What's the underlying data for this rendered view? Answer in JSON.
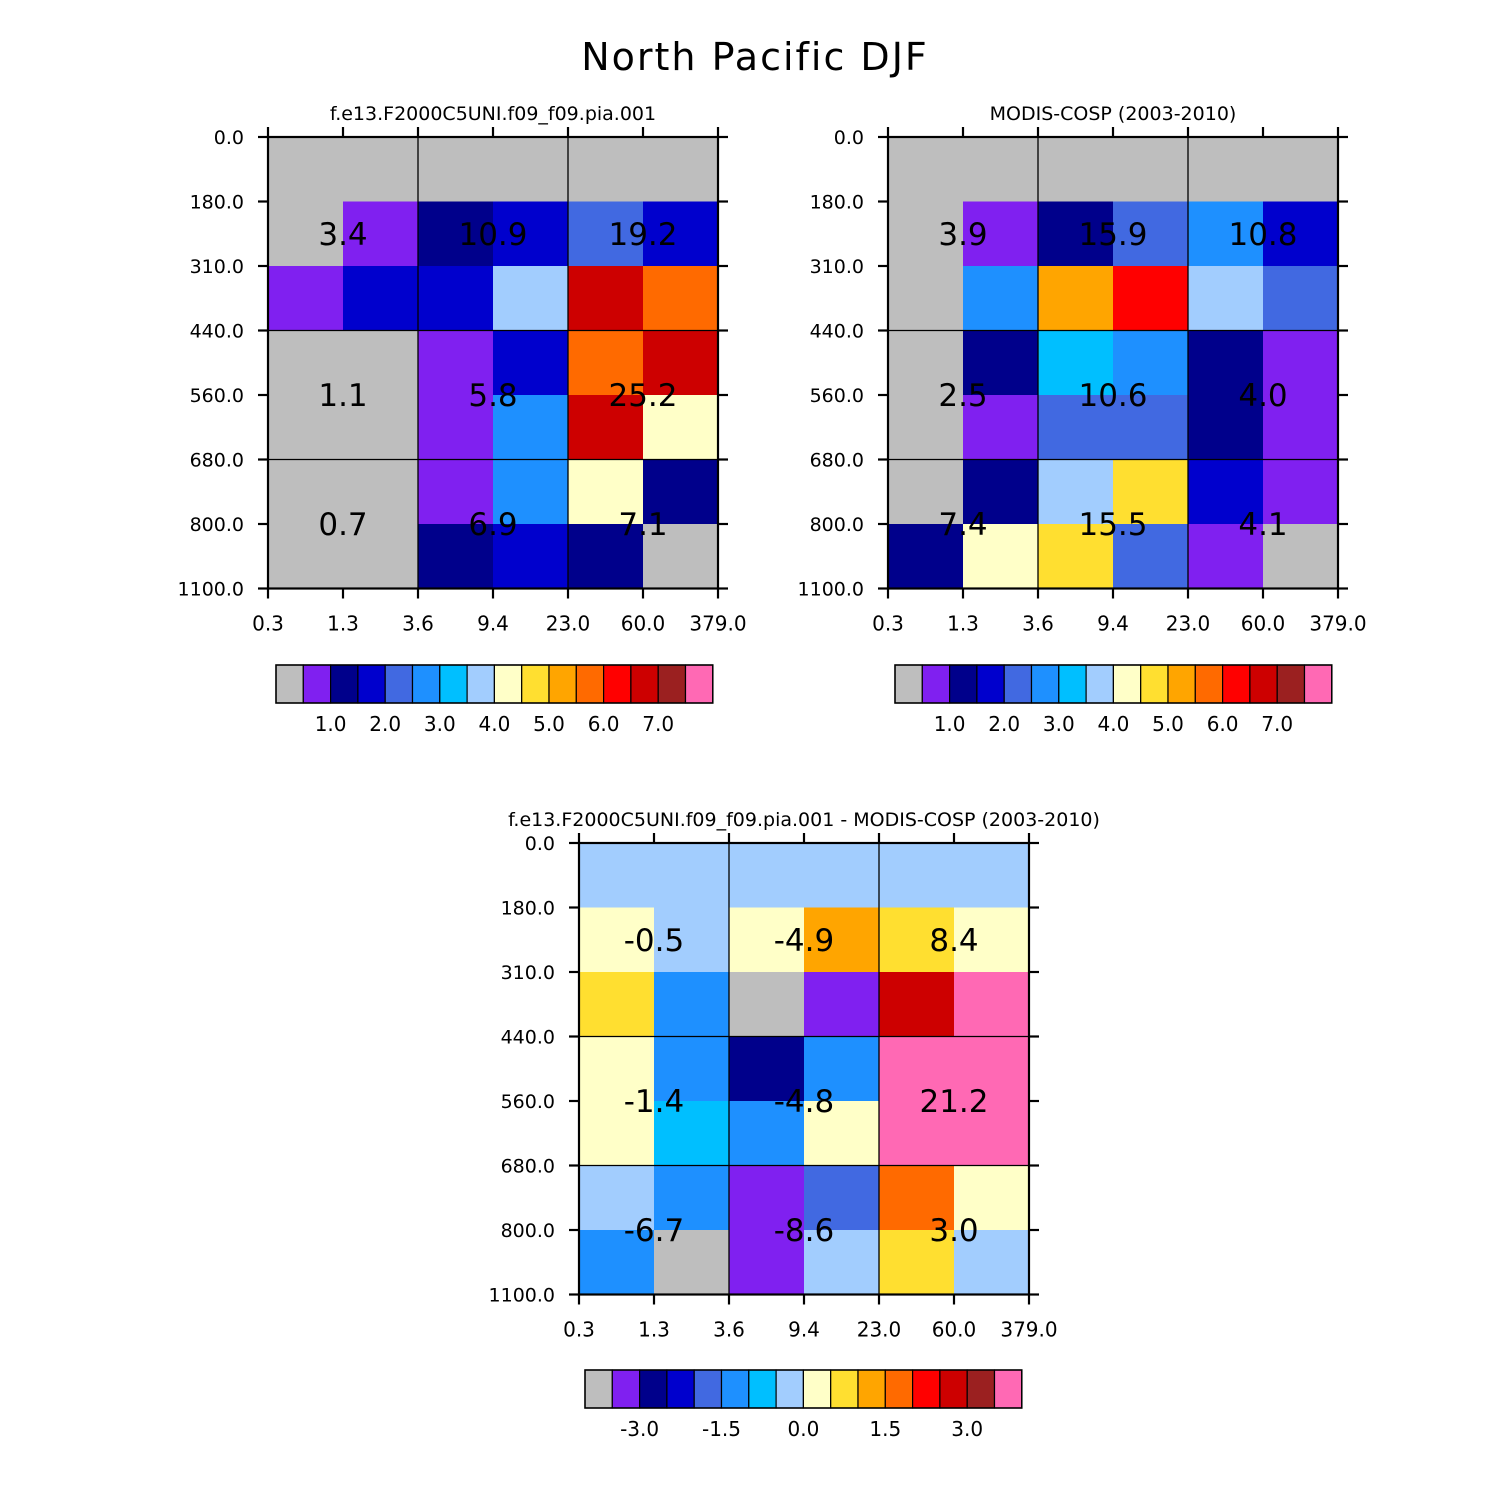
{
  "chart_data": {
    "type": "heatmap",
    "title": "North Pacific DJF",
    "x_ticks": [
      "0.3",
      "1.3",
      "3.6",
      "9.4",
      "23.0",
      "60.0",
      "379.0"
    ],
    "y_ticks": [
      "0.0",
      "180.0",
      "310.0",
      "440.0",
      "560.0",
      "680.0",
      "800.0",
      "1100.0"
    ],
    "panels": [
      {
        "id": "model",
        "title": "f.e13.F2000C5UNI.f09_f09.pia.001",
        "cells": [
          [
            0,
            0,
            0,
            0,
            0,
            0
          ],
          [
            0,
            1,
            2,
            3,
            4,
            3
          ],
          [
            1,
            3,
            3,
            7,
            13,
            11
          ],
          [
            0,
            0,
            1,
            3,
            11,
            13
          ],
          [
            0,
            0,
            1,
            5,
            13,
            8
          ],
          [
            0,
            0,
            1,
            5,
            8,
            2
          ],
          [
            0,
            0,
            2,
            3,
            2,
            0
          ]
        ],
        "boxes": [
          [
            "3.4",
            "10.9",
            "19.2"
          ],
          [
            "1.1",
            "5.8",
            "25.2"
          ],
          [
            "0.7",
            "6.9",
            "7.1"
          ]
        ],
        "colorbar_labels": [
          "1.0",
          "2.0",
          "3.0",
          "4.0",
          "5.0",
          "6.0",
          "7.0"
        ],
        "colorbar_label_pos": [
          2,
          4,
          6,
          8,
          10,
          12,
          14
        ]
      },
      {
        "id": "obs",
        "title": "MODIS-COSP (2003-2010)",
        "cells": [
          [
            0,
            0,
            0,
            0,
            0,
            0
          ],
          [
            0,
            1,
            2,
            4,
            5,
            3
          ],
          [
            0,
            5,
            10,
            12,
            7,
            4
          ],
          [
            0,
            2,
            6,
            5,
            2,
            1
          ],
          [
            0,
            1,
            4,
            4,
            2,
            1
          ],
          [
            0,
            2,
            7,
            9,
            3,
            1
          ],
          [
            2,
            8,
            9,
            4,
            1,
            0
          ]
        ],
        "boxes": [
          [
            "3.9",
            "15.9",
            "10.8"
          ],
          [
            "2.5",
            "10.6",
            "4.0"
          ],
          [
            "7.4",
            "15.5",
            "4.1"
          ]
        ],
        "colorbar_labels": [
          "1.0",
          "2.0",
          "3.0",
          "4.0",
          "5.0",
          "6.0",
          "7.0"
        ],
        "colorbar_label_pos": [
          2,
          4,
          6,
          8,
          10,
          12,
          14
        ]
      },
      {
        "id": "diff",
        "title": "f.e13.F2000C5UNI.f09_f09.pia.001 - MODIS-COSP (2003-2010)",
        "cells": [
          [
            7,
            7,
            7,
            7,
            7,
            7
          ],
          [
            8,
            7,
            8,
            10,
            9,
            8
          ],
          [
            9,
            5,
            0,
            1,
            13,
            15
          ],
          [
            8,
            5,
            2,
            5,
            15,
            15
          ],
          [
            8,
            6,
            5,
            8,
            15,
            15
          ],
          [
            7,
            5,
            1,
            4,
            11,
            8
          ],
          [
            5,
            0,
            1,
            7,
            9,
            7
          ]
        ],
        "boxes": [
          [
            "-0.5",
            "-4.9",
            "8.4"
          ],
          [
            "-1.4",
            "-4.8",
            "21.2"
          ],
          [
            "-6.7",
            "-8.6",
            "3.0"
          ]
        ],
        "colorbar_labels": [
          "-3.0",
          "-1.5",
          "0.0",
          "1.5",
          "3.0"
        ],
        "colorbar_label_pos": [
          2,
          5,
          8,
          11,
          14
        ]
      }
    ],
    "palette": [
      "#bebebe",
      "#8020f0",
      "#00008b",
      "#0000cd",
      "#4169e1",
      "#1e90ff",
      "#00bfff",
      "#a2cdfe",
      "#ffffc8",
      "#ffdf30",
      "#ffa500",
      "#ff6a00",
      "#ff0000",
      "#cd0000",
      "#9b2020",
      "#ff69b4"
    ]
  }
}
